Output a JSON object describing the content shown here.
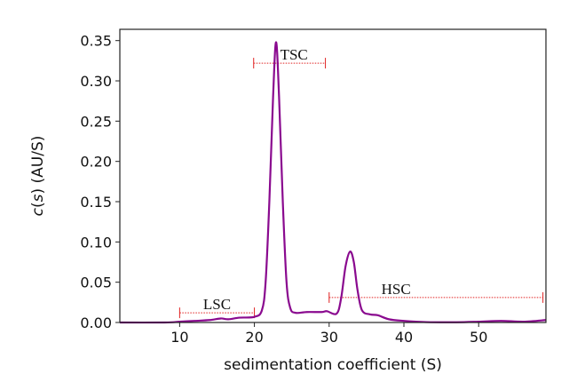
{
  "chart_data": {
    "type": "line",
    "title": "",
    "xlabel": "sedimentation coefficient (S)",
    "ylabel_parts": {
      "pre": "c",
      "mid1": "(",
      "var": "s",
      "mid2": ") (AU/S)"
    },
    "xlim": [
      2,
      59
    ],
    "ylim": [
      0,
      0.364
    ],
    "xticks": [
      10,
      20,
      30,
      40,
      50
    ],
    "xtick_labels": [
      "10",
      "20",
      "30",
      "40",
      "50"
    ],
    "yticks": [
      0,
      0.05,
      0.1,
      0.15,
      0.2,
      0.25,
      0.3,
      0.35
    ],
    "ytick_labels": [
      "0.00",
      "0.05",
      "0.10",
      "0.15",
      "0.20",
      "0.25",
      "0.30",
      "0.35"
    ],
    "grid": false,
    "series": [
      {
        "color": "#8a0a8f",
        "x": [
          2,
          8,
          10,
          12,
          14,
          15.5,
          16.5,
          18,
          20,
          21,
          21.5,
          22,
          22.5,
          22.9,
          23.3,
          23.8,
          24.3,
          24.8,
          25.5,
          27,
          29,
          29.7,
          31,
          31.6,
          32.2,
          32.8,
          33.3,
          33.8,
          34.4,
          35.5,
          36.5,
          38,
          40,
          43,
          47,
          50,
          53,
          56,
          59
        ],
        "y": [
          0,
          0,
          0.001,
          0.002,
          0.003,
          0.005,
          0.004,
          0.006,
          0.007,
          0.015,
          0.05,
          0.15,
          0.28,
          0.348,
          0.28,
          0.15,
          0.05,
          0.018,
          0.012,
          0.013,
          0.013,
          0.014,
          0.011,
          0.03,
          0.07,
          0.088,
          0.075,
          0.04,
          0.015,
          0.01,
          0.009,
          0.004,
          0.002,
          0.0005,
          0.0003,
          0.001,
          0.002,
          0.001,
          0.003
        ]
      }
    ],
    "annotations": [
      {
        "label": "LSC",
        "range": [
          10,
          20
        ],
        "y": 0.012,
        "color": "#e02020"
      },
      {
        "label": "TSC",
        "range": [
          19.9,
          29.5
        ],
        "y": 0.322,
        "color": "#e02020"
      },
      {
        "label": "HSC",
        "range": [
          30,
          58.6
        ],
        "y": 0.031,
        "color": "#e02020"
      }
    ]
  }
}
